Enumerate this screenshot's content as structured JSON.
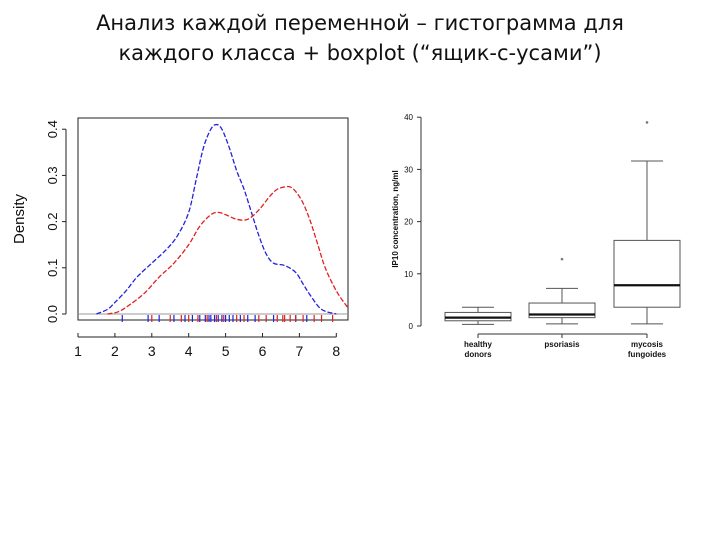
{
  "slide": {
    "title_line1": "Анализ каждой переменной – гистограмма для",
    "title_line2": "каждого класса + boxplot (“ящик-с-усами”)"
  },
  "chart_data": [
    {
      "type": "line",
      "title": "",
      "xlabel": "",
      "ylabel": "Density",
      "xlim": [
        1,
        8.3
      ],
      "ylim": [
        0,
        0.43
      ],
      "x_ticks": [
        1,
        2,
        3,
        4,
        5,
        6,
        7,
        8
      ],
      "y_ticks": [
        0.0,
        0.1,
        0.2,
        0.3,
        0.4
      ],
      "y_tick_labels": [
        "0.0",
        "0.1",
        "0.2",
        "0.3",
        "0.4"
      ],
      "colors": {
        "blue": "#2222dd",
        "red": "#e02020"
      },
      "series": [
        {
          "color": "#2222dd",
          "x": [
            1.5,
            1.8,
            2.0,
            2.3,
            2.6,
            3.0,
            3.4,
            3.7,
            4.0,
            4.2,
            4.4,
            4.6,
            4.75,
            4.9,
            5.1,
            5.3,
            5.5,
            5.7,
            5.9,
            6.1,
            6.3,
            6.6,
            6.9,
            7.1,
            7.3,
            7.6,
            8.0
          ],
          "y": [
            0.0,
            0.01,
            0.025,
            0.05,
            0.08,
            0.11,
            0.14,
            0.17,
            0.22,
            0.29,
            0.36,
            0.4,
            0.41,
            0.4,
            0.36,
            0.31,
            0.27,
            0.22,
            0.17,
            0.13,
            0.11,
            0.105,
            0.09,
            0.065,
            0.04,
            0.01,
            0.0
          ]
        },
        {
          "color": "#e02020",
          "x": [
            1.8,
            2.1,
            2.4,
            2.8,
            3.2,
            3.6,
            4.0,
            4.3,
            4.6,
            4.8,
            5.0,
            5.3,
            5.6,
            5.9,
            6.2,
            6.4,
            6.6,
            6.75,
            6.9,
            7.1,
            7.3,
            7.5,
            7.7,
            8.0,
            8.3
          ],
          "y": [
            0.0,
            0.005,
            0.02,
            0.045,
            0.08,
            0.11,
            0.15,
            0.19,
            0.215,
            0.22,
            0.215,
            0.205,
            0.205,
            0.225,
            0.255,
            0.27,
            0.275,
            0.275,
            0.265,
            0.24,
            0.2,
            0.15,
            0.1,
            0.05,
            0.015
          ]
        }
      ],
      "rug": [
        {
          "color": "#2222dd",
          "x": [
            2.2,
            2.9,
            3.2,
            3.6,
            3.9,
            4.1,
            4.3,
            4.45,
            4.55,
            4.6,
            4.7,
            4.8,
            4.9,
            5.0,
            5.1,
            5.2,
            5.4,
            5.6,
            5.8,
            6.3,
            6.9,
            7.2
          ]
        },
        {
          "color": "#e02020",
          "x": [
            3.0,
            3.5,
            3.8,
            4.0,
            4.25,
            4.5,
            4.75,
            4.95,
            5.3,
            5.5,
            5.9,
            6.1,
            6.4,
            6.55,
            6.6,
            6.75,
            6.9,
            7.1,
            7.4,
            7.6,
            7.9
          ]
        }
      ]
    },
    {
      "type": "box",
      "title": "",
      "ylabel": "IP10 concentration, ng/ml",
      "ylim": [
        0,
        40
      ],
      "y_ticks": [
        0,
        10,
        20,
        30,
        40
      ],
      "categories": [
        {
          "line1": "healthy",
          "line2": "donors"
        },
        {
          "line1": "psoriasis",
          "line2": ""
        },
        {
          "line1": "mycosis",
          "line2": "fungoides"
        }
      ],
      "boxes": [
        {
          "whisker_low": 0.3,
          "q1": 1.0,
          "median": 1.6,
          "q3": 2.6,
          "whisker_high": 3.6,
          "outliers": []
        },
        {
          "whisker_low": 0.4,
          "q1": 1.6,
          "median": 2.2,
          "q3": 4.4,
          "whisker_high": 7.2,
          "outliers": [
            12.8
          ]
        },
        {
          "whisker_low": 0.4,
          "q1": 3.6,
          "median": 7.8,
          "q3": 16.4,
          "whisker_high": 31.6,
          "outliers": [
            39.0
          ]
        }
      ]
    }
  ]
}
